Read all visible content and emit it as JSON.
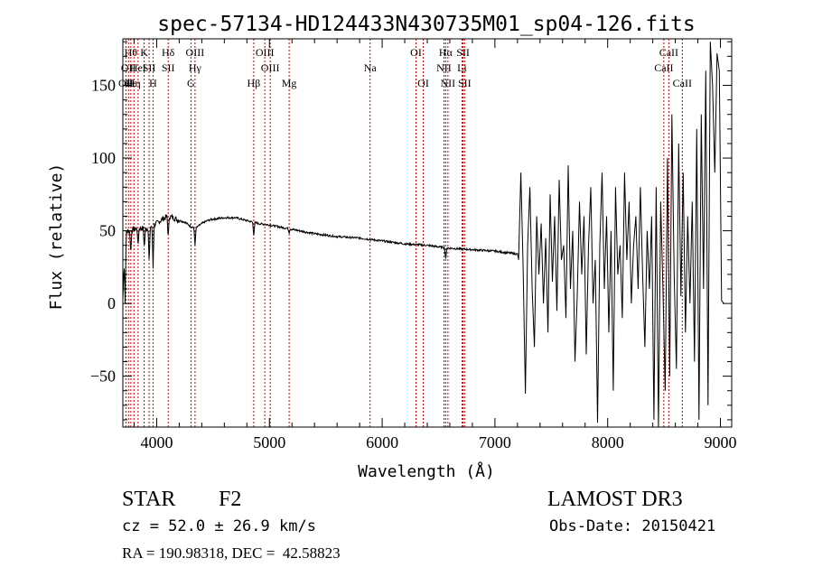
{
  "chart_data": {
    "type": "line",
    "title": "spec-57134-HD124433N430735M01_sp04-126.fits",
    "xlabel": "Wavelength (Å)",
    "ylabel": "Flux (relative)",
    "xlim": [
      3700,
      9100
    ],
    "ylim": [
      -85,
      182
    ],
    "xticks": [
      4000,
      5000,
      6000,
      7000,
      8000,
      9000
    ],
    "yticks": [
      -50,
      0,
      50,
      100,
      150
    ],
    "line_color": "#000000",
    "marker_color": "#cc0000",
    "series": [
      {
        "name": "flux",
        "smooth": {
          "x": [
            3700,
            3720,
            3750,
            3800,
            3850,
            3900,
            3950,
            4000,
            4050,
            4100,
            4150,
            4200,
            4250,
            4300,
            4350,
            4400,
            4450,
            4500,
            4600,
            4700,
            4800,
            4900,
            5000,
            5200,
            5400,
            5600,
            5800,
            6000,
            6200,
            6400,
            6600,
            6800,
            7000,
            7200
          ],
          "y": [
            3,
            48,
            50,
            51,
            52,
            51,
            53,
            55,
            58,
            60,
            59,
            57,
            56,
            53,
            52,
            55,
            57,
            58,
            59,
            59,
            57,
            55,
            54,
            51,
            48,
            46,
            45,
            43,
            41,
            40,
            38,
            37,
            36,
            34
          ]
        },
        "features": [
          {
            "x": 3720,
            "y": 0
          },
          {
            "x": 3770,
            "y": 34
          },
          {
            "x": 3835,
            "y": 40
          },
          {
            "x": 3890,
            "y": 38
          },
          {
            "x": 3933,
            "y": 28
          },
          {
            "x": 3968,
            "y": 24
          },
          {
            "x": 4102,
            "y": 45
          },
          {
            "x": 4340,
            "y": 40
          },
          {
            "x": 4861,
            "y": 46
          },
          {
            "x": 5175,
            "y": 48
          },
          {
            "x": 6563,
            "y": 30
          }
        ],
        "noisy": {
          "x": [
            7210,
            7230,
            7250,
            7270,
            7290,
            7310,
            7330,
            7350,
            7370,
            7390,
            7410,
            7430,
            7450,
            7470,
            7490,
            7510,
            7530,
            7550,
            7570,
            7590,
            7610,
            7630,
            7650,
            7670,
            7690,
            7710,
            7730,
            7750,
            7770,
            7790,
            7810,
            7830,
            7850,
            7870,
            7890,
            7910,
            7930,
            7950,
            7970,
            7990,
            8010,
            8030,
            8050,
            8070,
            8090,
            8110,
            8130,
            8150,
            8170,
            8190,
            8210,
            8230,
            8250,
            8270,
            8290,
            8310,
            8330,
            8350,
            8370,
            8390,
            8410,
            8430,
            8450,
            8470,
            8490,
            8510,
            8530,
            8550,
            8570,
            8590,
            8610,
            8630,
            8650,
            8670,
            8690,
            8710,
            8730,
            8750,
            8770,
            8790,
            8810,
            8830,
            8850,
            8870,
            8890,
            8910,
            8930,
            8950,
            8970,
            8990,
            9010,
            9030
          ],
          "y": [
            30,
            90,
            25,
            -62,
            40,
            80,
            10,
            -30,
            60,
            20,
            55,
            0,
            45,
            -20,
            75,
            15,
            60,
            -5,
            85,
            30,
            40,
            -10,
            95,
            10,
            50,
            -40,
            5,
            70,
            20,
            60,
            -35,
            40,
            80,
            0,
            30,
            -82,
            40,
            90,
            10,
            60,
            -20,
            50,
            -60,
            80,
            20,
            40,
            -10,
            90,
            30,
            70,
            0,
            40,
            60,
            10,
            80,
            20,
            -30,
            50,
            10,
            60,
            -80,
            80,
            -85,
            70,
            10,
            -60,
            100,
            -50,
            130,
            20,
            -45,
            110,
            5,
            90,
            -20,
            60,
            0,
            70,
            -40,
            120,
            -80,
            130,
            10,
            160,
            -70,
            180,
            150,
            90,
            172,
            160,
            2,
            0
          ]
        }
      }
    ],
    "annotations": [
      {
        "x": 3727,
        "labels": [
          "OII"
        ],
        "rows": [
          3
        ]
      },
      {
        "x": 3750,
        "labels": [
          "OII"
        ],
        "rows": [
          2
        ]
      },
      {
        "x": 3771,
        "labels": [
          "Hθ",
          "Hε"
        ],
        "rows": [
          1,
          3
        ]
      },
      {
        "x": 3798,
        "labels": [
          "Hη"
        ],
        "rows": [
          3
        ]
      },
      {
        "x": 3835,
        "labels": [
          "HeI"
        ],
        "rows": [
          2
        ]
      },
      {
        "x": 3889,
        "labels": [
          "K"
        ],
        "rows": [
          1
        ]
      },
      {
        "x": 3933,
        "labels": [
          "SII"
        ],
        "rows": [
          2
        ]
      },
      {
        "x": 3968,
        "labels": [
          "H"
        ],
        "rows": [
          3
        ]
      },
      {
        "x": 4102,
        "labels": [
          "Hδ",
          "SII"
        ],
        "rows": [
          1,
          2
        ]
      },
      {
        "x": 4304,
        "labels": [
          "G"
        ],
        "rows": [
          3
        ]
      },
      {
        "x": 4340,
        "labels": [
          "OIII",
          "Hγ"
        ],
        "rows": [
          1,
          2
        ]
      },
      {
        "x": 4861,
        "labels": [
          "Hβ"
        ],
        "rows": [
          3
        ]
      },
      {
        "x": 4959,
        "labels": [
          "OIII"
        ],
        "rows": [
          1
        ]
      },
      {
        "x": 5007,
        "labels": [
          "OIII"
        ],
        "rows": [
          2
        ]
      },
      {
        "x": 5175,
        "labels": [
          "Mg"
        ],
        "rows": [
          3
        ]
      },
      {
        "x": 5893,
        "labels": [
          "Na"
        ],
        "rows": [
          2
        ]
      },
      {
        "x": 6300,
        "labels": [
          "OI"
        ],
        "rows": [
          1
        ]
      },
      {
        "x": 6364,
        "labels": [
          "OI"
        ],
        "rows": [
          3
        ]
      },
      {
        "x": 6548,
        "labels": [
          "NII"
        ],
        "rows": [
          2
        ]
      },
      {
        "x": 6563,
        "labels": [
          "Hα"
        ],
        "rows": [
          1
        ]
      },
      {
        "x": 6583,
        "labels": [
          "NII"
        ],
        "rows": [
          3
        ]
      },
      {
        "x": 6708,
        "labels": [
          "Li"
        ],
        "rows": [
          2
        ]
      },
      {
        "x": 6717,
        "labels": [
          "SII"
        ],
        "rows": [
          1
        ]
      },
      {
        "x": 6731,
        "labels": [
          "SII"
        ],
        "rows": [
          3
        ]
      },
      {
        "x": 8498,
        "labels": [
          "CaII"
        ],
        "rows": [
          2
        ]
      },
      {
        "x": 8542,
        "labels": [
          "CaII"
        ],
        "rows": [
          1
        ]
      },
      {
        "x": 8662,
        "labels": [
          "CaII"
        ],
        "rows": [
          3
        ]
      }
    ]
  },
  "info": {
    "class": "STAR",
    "subclass": "F2",
    "survey": "LAMOST DR3",
    "redshift": "cz = 52.0 ± 26.9 km/s",
    "obs_date": "Obs-Date: 20150421",
    "coords": "RA = 190.98318, DEC =  42.58823"
  }
}
